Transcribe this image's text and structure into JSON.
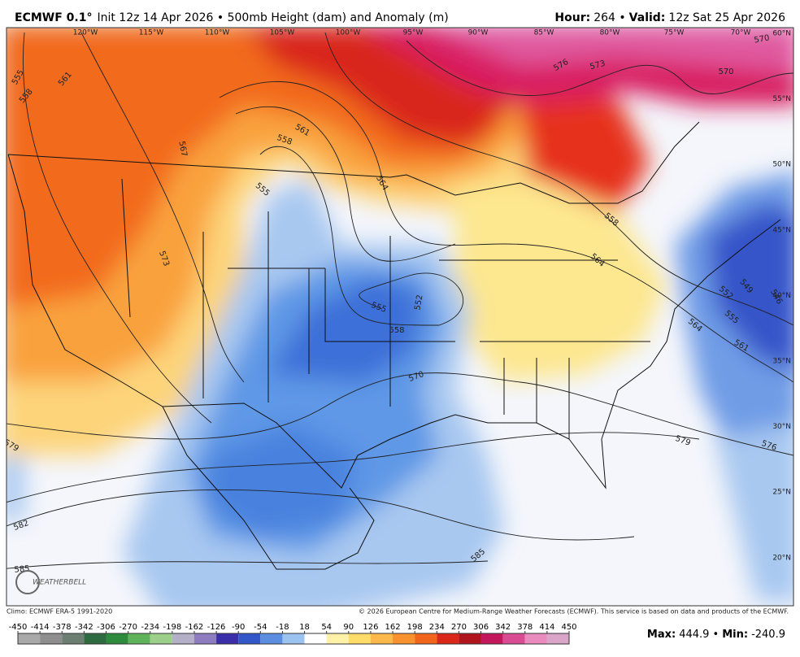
{
  "header": {
    "model": "ECMWF 0.1°",
    "description": "Init 12z 14 Apr 2026 • 500mb Height (dam) and Anomaly (m)",
    "hour_label": "Hour:",
    "hour": "264 •",
    "valid_label": "Valid:",
    "valid": "12z Sat 25 Apr 2026"
  },
  "map": {
    "lon_labels": [
      "120°W",
      "115°W",
      "110°W",
      "105°W",
      "100°W",
      "95°W",
      "90°W",
      "85°W",
      "80°W",
      "75°W",
      "70°W"
    ],
    "lat_labels": [
      "60°N",
      "55°N",
      "50°N",
      "45°N",
      "40°N",
      "35°N",
      "30°N",
      "25°N",
      "20°N"
    ],
    "contour_labels": [
      "555",
      "561",
      "558",
      "567",
      "558",
      "561",
      "555",
      "564",
      "573",
      "576",
      "573",
      "570",
      "570",
      "558",
      "564",
      "555",
      "552",
      "558",
      "549",
      "552",
      "555",
      "564",
      "561",
      "546",
      "570",
      "579",
      "579",
      "576",
      "582",
      "585",
      "585"
    ],
    "logo": "WEATHERBELL"
  },
  "footer": {
    "climo": "Climo: ECMWF ERA-5 1991-2020",
    "copyright": "© 2026 European Centre for Medium-Range Weather Forecasts (ECMWF). This service is based on data and products of the ECMWF.",
    "colorbar_ticks": [
      -450,
      -414,
      -378,
      -342,
      -306,
      -270,
      -234,
      -198,
      -162,
      -126,
      -90,
      -54,
      -18,
      18,
      54,
      90,
      126,
      162,
      198,
      234,
      270,
      306,
      342,
      378,
      414,
      450
    ],
    "max_label": "Max:",
    "max": "444.9 •",
    "min_label": "Min:",
    "min": "-240.9"
  }
}
